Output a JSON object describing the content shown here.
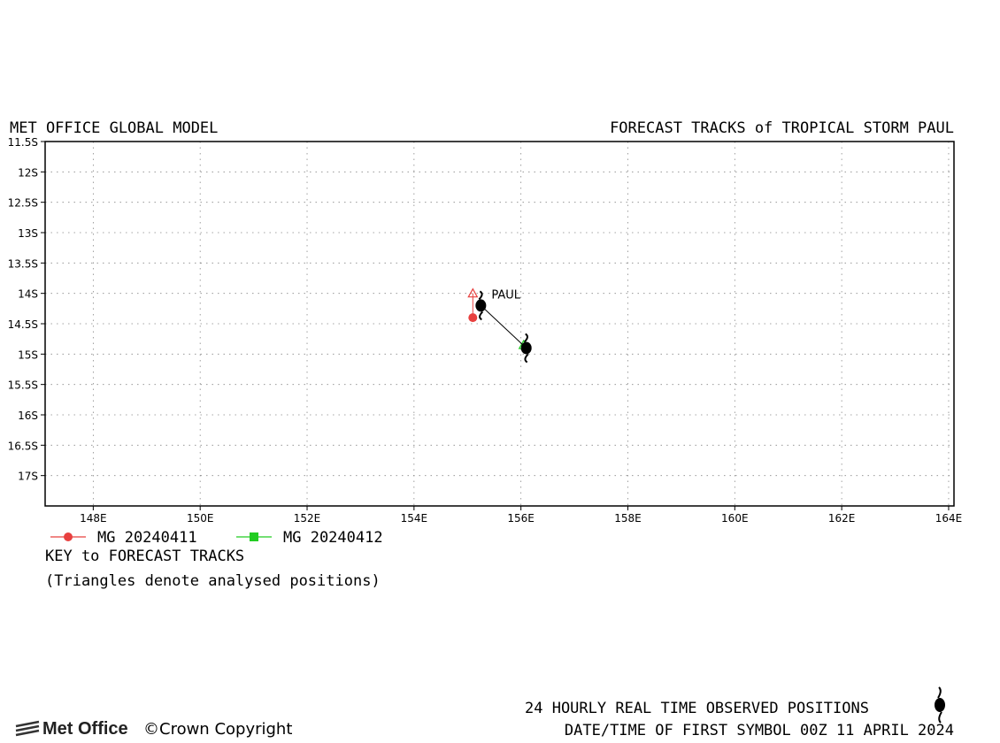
{
  "header": {
    "left_title": "MET OFFICE GLOBAL MODEL",
    "right_title": "FORECAST TRACKS of TROPICAL STORM PAUL"
  },
  "chart_data": {
    "type": "map-tracks",
    "lat_labels": [
      "11.5S",
      "12S",
      "12.5S",
      "13S",
      "13.5S",
      "14S",
      "14.5S",
      "15S",
      "15.5S",
      "16S",
      "16.5S",
      "17S"
    ],
    "lat_values": [
      -11.5,
      -12,
      -12.5,
      -13,
      -13.5,
      -14,
      -14.5,
      -15,
      -15.5,
      -16,
      -16.5,
      -17
    ],
    "lon_labels": [
      "148E",
      "150E",
      "152E",
      "154E",
      "156E",
      "158E",
      "160E",
      "162E",
      "164E"
    ],
    "lon_values": [
      148,
      150,
      152,
      154,
      156,
      158,
      160,
      162,
      164
    ],
    "xlim": [
      147.1,
      164.1
    ],
    "ylim": [
      -17.5,
      -11.5
    ],
    "grid": true,
    "storm_label": "PAUL",
    "observed_positions": [
      {
        "lon": 155.25,
        "lat": -14.2
      },
      {
        "lon": 156.1,
        "lat": -14.9
      }
    ],
    "tracks": [
      {
        "name": "MG 20240411",
        "color": "#e8403f",
        "marker": "circle",
        "analysed": {
          "lon": 155.1,
          "lat": -14.0
        },
        "forecast": [
          {
            "lon": 155.1,
            "lat": -14.4
          }
        ]
      },
      {
        "name": "MG 20240412",
        "color": "#22cc22",
        "marker": "square",
        "analysed": {
          "lon": 156.05,
          "lat": -14.85
        },
        "forecast": []
      }
    ]
  },
  "legend": {
    "key_title": "KEY to FORECAST TRACKS",
    "key_note": "(Triangles denote analysed positions)"
  },
  "footer": {
    "observed_label": "24 HOURLY REAL TIME OBSERVED POSITIONS",
    "datetime_label": "DATE/TIME OF FIRST SYMBOL 00Z 11 APRIL 2024",
    "logo_text": "Met Office",
    "copyright": "Crown Copyright"
  }
}
